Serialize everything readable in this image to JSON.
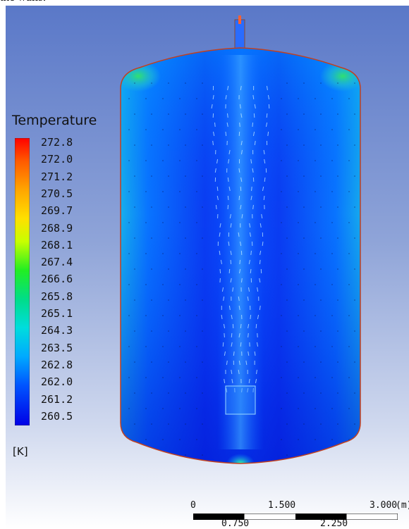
{
  "caption_fragment": "the walls.",
  "legend": {
    "title": "Temperature",
    "unit": "[K]",
    "tick_labels": [
      "272.8",
      "272.0",
      "271.2",
      "270.5",
      "269.7",
      "268.9",
      "268.1",
      "267.4",
      "266.6",
      "265.8",
      "265.1",
      "264.3",
      "263.5",
      "262.8",
      "262.0",
      "261.2",
      "260.5"
    ],
    "colormap": [
      "#ff0000",
      "#ff6600",
      "#ffaa00",
      "#ffdd00",
      "#ddff00",
      "#88ff00",
      "#22ee22",
      "#00dd66",
      "#00ddaa",
      "#00dddd",
      "#00bbff",
      "#0088ff",
      "#0055ff",
      "#0022ff",
      "#0000ee"
    ]
  },
  "scale_bar": {
    "labels_top": [
      "0",
      "1.500",
      "3.000"
    ],
    "labels_bottom": [
      "0.750",
      "2.250"
    ],
    "unit": "(m)"
  },
  "colors": {
    "background_top": "#5a78c8",
    "vessel_fluid": "#0c3cf0",
    "jet_core": "#0a60ff",
    "wall": "#c04020"
  }
}
